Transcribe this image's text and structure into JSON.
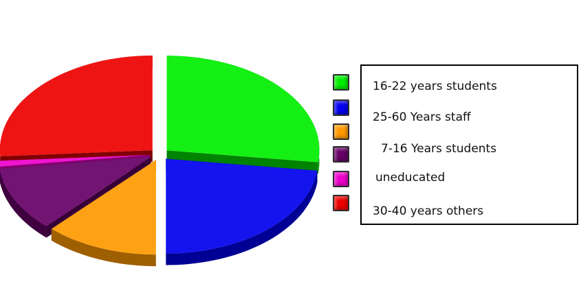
{
  "chart_data": {
    "type": "pie",
    "title": "",
    "style": "3d-exploded",
    "legend_position": "right",
    "slices": [
      {
        "label": "16-22 years students",
        "value": 27,
        "color": "#00ee00"
      },
      {
        "label": "25-60 Years staff",
        "value": 23,
        "color": "#0000ee"
      },
      {
        "label": "7-16 Years students",
        "value": 12,
        "color": "#ff9900"
      },
      {
        "label": "uneducated",
        "value": 1,
        "color": "#ee00cc"
      },
      {
        "label": "30-40 years others",
        "value": 26,
        "color": "#ee0000"
      }
    ],
    "legend": [
      {
        "label": "16-22 years students",
        "color": "#00ee00"
      },
      {
        "label": "25-60 Years staff",
        "color": "#0000ee"
      },
      {
        "label": "7-16 Years students",
        "color": "#ff9900"
      },
      {
        "label": "",
        "color": "#660066"
      },
      {
        "label": "uneducated",
        "color": "#ee00cc"
      },
      {
        "label": "30-40 years others",
        "color": "#ee0000"
      }
    ]
  },
  "unlabeled_slice": {
    "value": 11,
    "color": "#660066"
  }
}
